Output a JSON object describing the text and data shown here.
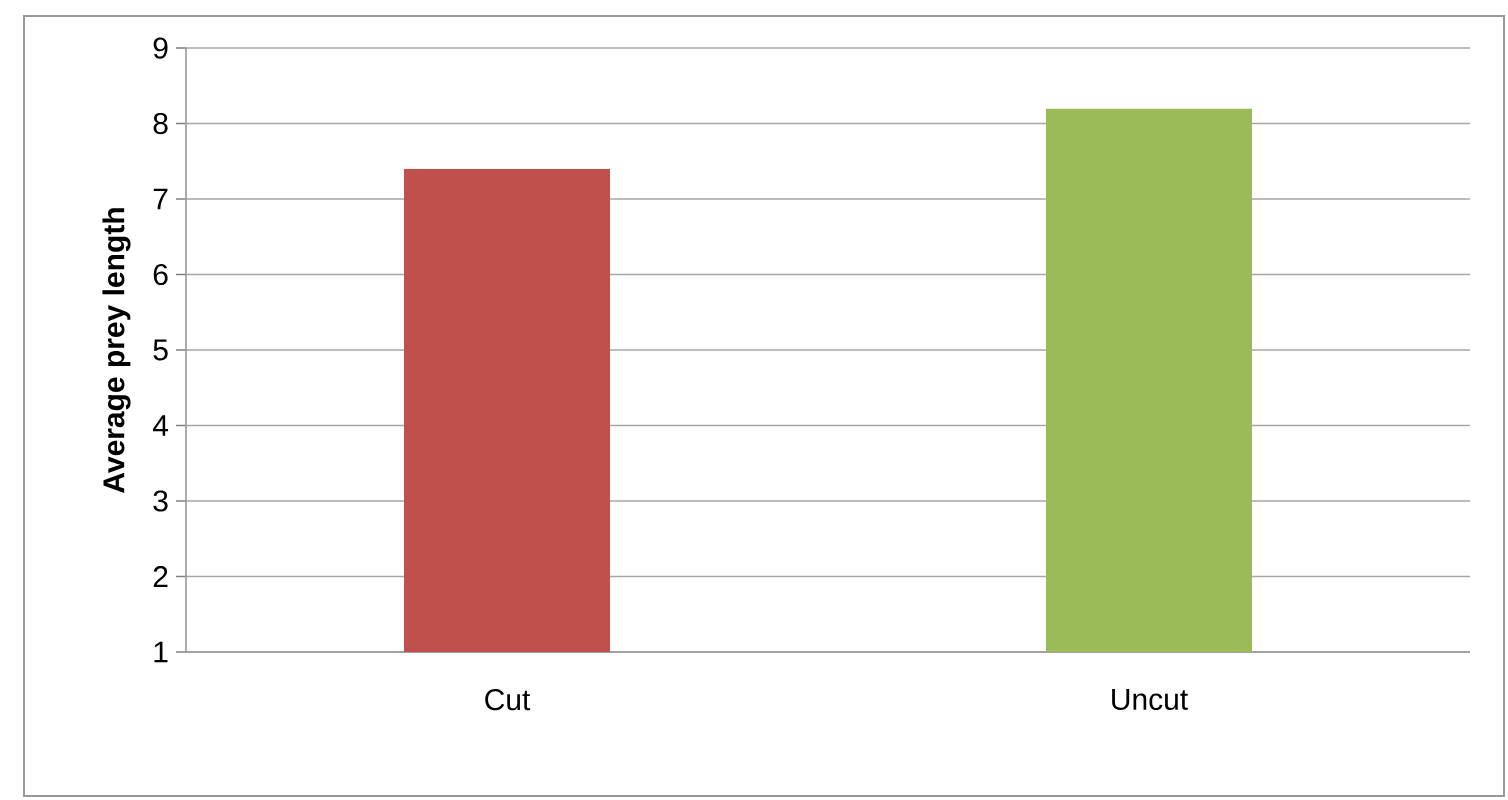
{
  "chart_data": {
    "type": "bar",
    "ylabel": "Average  prey length",
    "categories": [
      "Cut",
      "Uncut"
    ],
    "values": [
      7.4,
      8.2
    ],
    "colors": [
      "#c0504d",
      "#9bbb59"
    ],
    "ylim": [
      1,
      9
    ],
    "yticks": [
      1,
      2,
      3,
      4,
      5,
      6,
      7,
      8,
      9
    ],
    "grid": "y"
  }
}
